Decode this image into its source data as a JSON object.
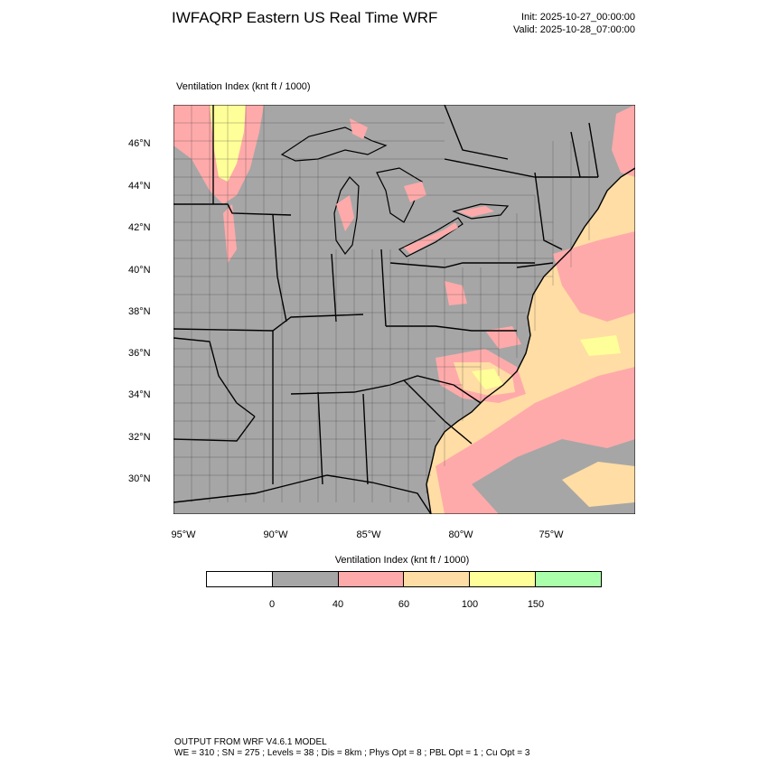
{
  "header": {
    "title": "IWFAQRP Eastern US Real Time WRF",
    "init": "Init: 2025-10-27_00:00:00",
    "valid": "Valid: 2025-10-28_07:00:00"
  },
  "map": {
    "subtitle": "Ventilation Index   (knt ft / 1000)",
    "lat_labels": [
      "46°N",
      "44°N",
      "42°N",
      "40°N",
      "38°N",
      "36°N",
      "34°N",
      "32°N",
      "30°N"
    ],
    "lon_labels": [
      "95°W",
      "90°W",
      "85°W",
      "80°W",
      "75°W"
    ],
    "colors": {
      "gray": "#a6a6a6",
      "pink": "#ffaaaa",
      "peach": "#ffdda4",
      "yellow": "#ffff99",
      "green": "#aaffaa"
    }
  },
  "legend": {
    "title": "Ventilation Index  (knt ft / 1000)",
    "ticks": [
      "0",
      "40",
      "60",
      "100",
      "150"
    ],
    "colors": [
      "#ffffff",
      "#a6a6a6",
      "#ffaaaa",
      "#ffdda4",
      "#ffff99",
      "#aaffaa"
    ]
  },
  "footer": {
    "line1": "OUTPUT FROM WRF V4.6.1 MODEL",
    "line2": "WE = 310 ; SN = 275 ; Levels = 38 ; Dis = 8km ; Phys Opt = 8 ; PBL Opt = 1 ; Cu Opt = 3"
  }
}
